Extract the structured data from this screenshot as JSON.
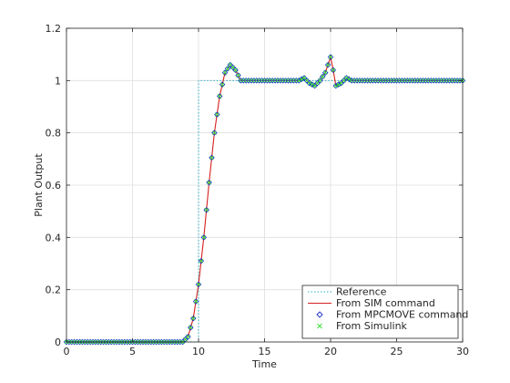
{
  "chart_data": {
    "type": "line",
    "title": "",
    "xlabel": "Time",
    "ylabel": "Plant Output",
    "xlim": [
      0,
      30
    ],
    "ylim": [
      0,
      1.2
    ],
    "xticks": [
      0,
      5,
      10,
      15,
      20,
      25,
      30
    ],
    "yticks": [
      0,
      0.2,
      0.4,
      0.6,
      0.8,
      1,
      1.2
    ],
    "xtick_labels": [
      "0",
      "5",
      "10",
      "15",
      "20",
      "25",
      "30"
    ],
    "ytick_labels": [
      "0",
      "0.2",
      "0.4",
      "0.6",
      "0.8",
      "1",
      "1.2"
    ],
    "grid": true,
    "legend_position": "bottom-right",
    "series": [
      {
        "name": "Reference",
        "style": "dotted-line",
        "color": "#2ab0c4",
        "x": [
          0,
          10,
          10,
          30
        ],
        "y": [
          0,
          0,
          1,
          1
        ]
      },
      {
        "name": "From SIM command",
        "style": "solid-line",
        "color": "#d62020",
        "x": [
          0,
          8.8,
          9.2,
          9.6,
          10.0,
          10.4,
          10.8,
          11.2,
          11.6,
          12.0,
          12.4,
          12.8,
          13.2,
          14,
          17,
          17.6,
          18,
          18.4,
          18.8,
          19.2,
          19.6,
          20.0,
          20.2,
          20.4,
          20.8,
          21.2,
          21.6,
          22,
          30
        ],
        "y": [
          0,
          0,
          0.02,
          0.09,
          0.22,
          0.4,
          0.61,
          0.8,
          0.94,
          1.03,
          1.06,
          1.04,
          1.0,
          1.0,
          1.0,
          1.0,
          1.01,
          0.99,
          0.98,
          1.0,
          1.03,
          1.09,
          1.04,
          0.98,
          0.99,
          1.01,
          1.0,
          1.0,
          1.0
        ]
      },
      {
        "name": "From MPCMOVE command",
        "style": "marker-diamond",
        "color": "#1a2ed0",
        "x": [],
        "y": []
      },
      {
        "name": "From Simulink",
        "style": "marker-x",
        "color": "#33dd33",
        "x": [],
        "y": []
      }
    ],
    "marker_sample": {
      "x": [
        0,
        8.8,
        9.2,
        9.6,
        10.0,
        10.4,
        10.8,
        11.2,
        11.6,
        12.0,
        12.4,
        12.8,
        13.2,
        14,
        17,
        17.6,
        18,
        18.4,
        18.8,
        19.2,
        19.6,
        20.0,
        20.2,
        20.4,
        20.8,
        21.2,
        21.6,
        22,
        30
      ],
      "y": [
        0,
        0,
        0.02,
        0.09,
        0.22,
        0.4,
        0.61,
        0.8,
        0.94,
        1.03,
        1.06,
        1.04,
        1.0,
        1.0,
        1.0,
        1.0,
        1.01,
        0.99,
        0.98,
        1.0,
        1.03,
        1.09,
        1.04,
        0.98,
        0.99,
        1.01,
        1.0,
        1.0,
        1.0
      ]
    }
  }
}
